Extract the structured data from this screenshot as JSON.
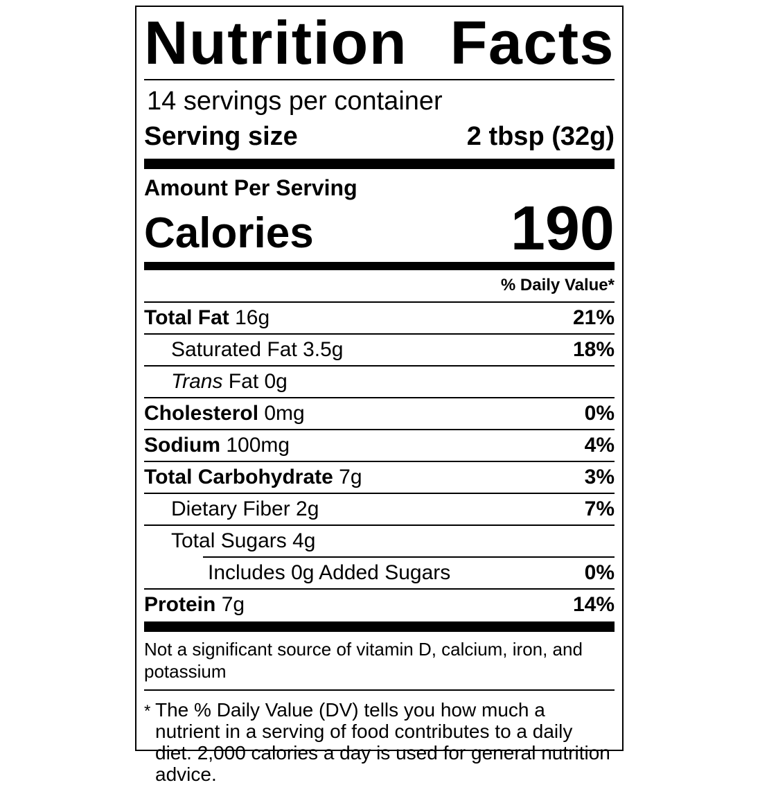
{
  "label": {
    "title": {
      "word1": "Nutrition",
      "word2": "Facts"
    },
    "servings_per_container": "14 servings per container",
    "serving_size": {
      "label": "Serving size",
      "value": "2 tbsp (32g)"
    },
    "amount_per_serving": "Amount Per Serving",
    "calories": {
      "label": "Calories",
      "value": "190"
    },
    "daily_value_header": "% Daily Value*",
    "rows": [
      {
        "bold": "Total Fat",
        "text": " 16g",
        "dv": "21%"
      },
      {
        "text": "Saturated Fat 3.5g",
        "dv": "18%"
      },
      {
        "italic": "Trans",
        "text": " Fat 0g",
        "dv": ""
      },
      {
        "bold": "Cholesterol",
        "text": " 0mg",
        "dv": "0%"
      },
      {
        "bold": "Sodium",
        "text": " 100mg",
        "dv": "4%"
      },
      {
        "bold": "Total Carbohydrate",
        "text": " 7g",
        "dv": "3%"
      },
      {
        "text": "Dietary Fiber 2g",
        "dv": "7%"
      },
      {
        "text": "Total Sugars 4g",
        "dv": ""
      },
      {
        "text": "Includes 0g Added Sugars",
        "dv": "0%"
      },
      {
        "bold": "Protein",
        "text": " 7g",
        "dv": "14%"
      }
    ],
    "insignificant_note": "Not a significant source of vitamin D, calcium, iron, and potassium",
    "footnote": {
      "marker": "*",
      "text": "The % Daily Value (DV) tells you how much a nutrient in a serving of food contributes to a daily diet. 2,000 calories a day is used for general nutrition advice."
    },
    "colors": {
      "ink": "#000000",
      "paper": "#ffffff"
    }
  }
}
